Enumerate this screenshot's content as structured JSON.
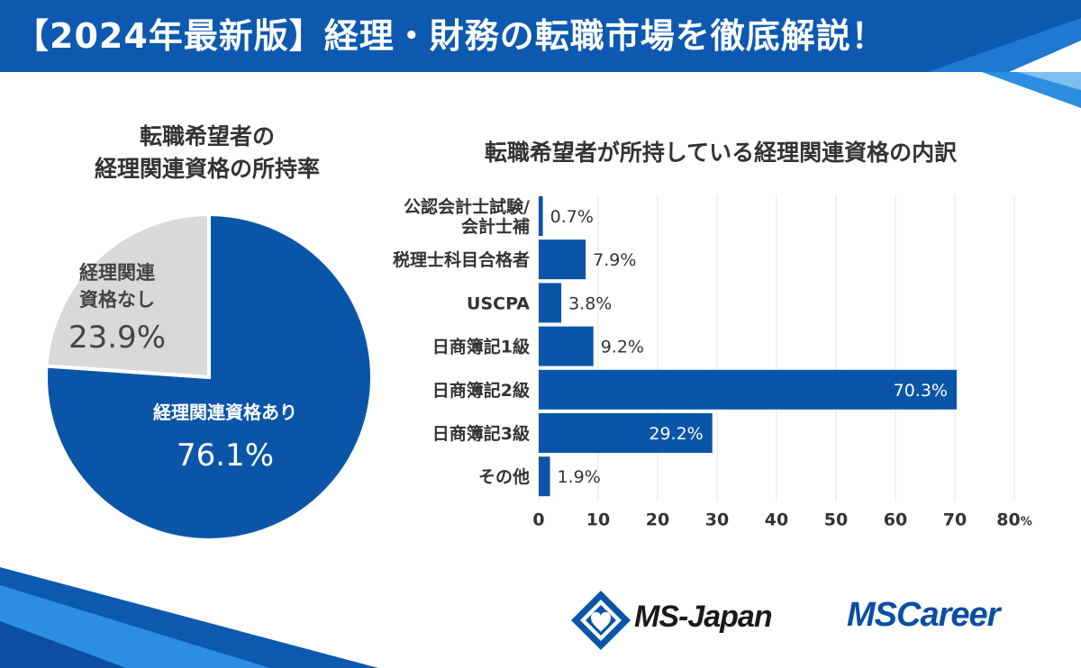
{
  "header": {
    "title": "【2024年最新版】経理・財務の転職市場を徹底解説！"
  },
  "colors": {
    "primary_blue": "#0b55a8",
    "gray": "#d9d9d9",
    "grid": "#e6e6e6",
    "header_bg": "#0d59b0"
  },
  "pie": {
    "title_line1": "転職希望者の",
    "title_line2": "経理関連資格の所持率"
  },
  "bar": {
    "title": "転職希望者が所持している経理関連資格の内訳"
  },
  "chart_data": [
    {
      "type": "pie",
      "title": "転職希望者の経理関連資格の所持率",
      "slices": [
        {
          "label": "経理関連資格あり",
          "value": 76.1,
          "display": "76.1%"
        },
        {
          "label_line1": "経理関連",
          "label_line2": "資格なし",
          "label": "経理関連資格なし",
          "value": 23.9,
          "display": "23.9%"
        }
      ]
    },
    {
      "type": "bar",
      "orientation": "horizontal",
      "title": "転職希望者が所持している経理関連資格の内訳",
      "categories": [
        {
          "lines": [
            "公認会計士試験/",
            "会計士補"
          ],
          "value": 0.7,
          "display": "0.7%"
        },
        {
          "lines": [
            "税理士科目合格者"
          ],
          "value": 7.9,
          "display": "7.9%"
        },
        {
          "lines": [
            "USCPA"
          ],
          "value": 3.8,
          "display": "3.8%"
        },
        {
          "lines": [
            "日商簿記1級"
          ],
          "value": 9.2,
          "display": "9.2%"
        },
        {
          "lines": [
            "日商簿記2級"
          ],
          "value": 70.3,
          "display": "70.3%"
        },
        {
          "lines": [
            "日商簿記3級"
          ],
          "value": 29.2,
          "display": "29.2%"
        },
        {
          "lines": [
            "その他"
          ],
          "value": 1.9,
          "display": "1.9%"
        }
      ],
      "xlim": [
        0,
        80
      ],
      "ticks": [
        "0",
        "10",
        "20",
        "30",
        "40",
        "50",
        "60",
        "70",
        "80"
      ],
      "tick_unit": "%",
      "grid": true
    }
  ],
  "logos": {
    "ms_japan": "MS-Japan",
    "ms_career": "MSCareer"
  }
}
